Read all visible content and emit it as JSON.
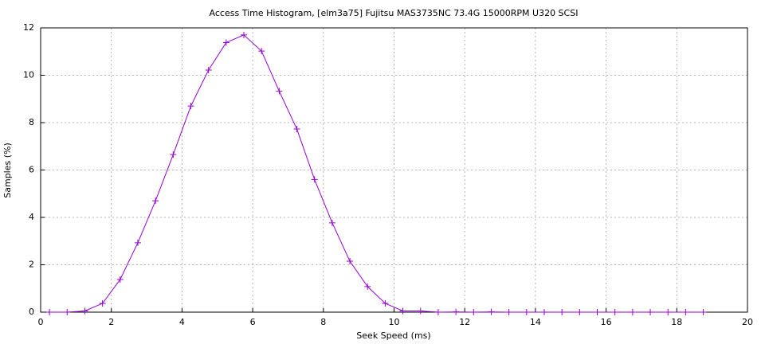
{
  "chart_data": {
    "type": "line",
    "title": "Access Time Histogram, [elm3a75] Fujitsu MAS3735NC 73.4G 15000RPM U320 SCSI",
    "x_label": "Seek Speed (ms)",
    "y_label": "Samples (%)",
    "x": [
      0.25,
      0.75,
      1.25,
      1.75,
      2.25,
      2.75,
      3.25,
      3.75,
      4.25,
      4.75,
      5.25,
      5.75,
      6.25,
      6.75,
      7.25,
      7.75,
      8.25,
      8.75,
      9.25,
      9.75,
      10.25,
      10.75,
      11.25,
      11.75,
      12.25,
      12.75,
      13.25,
      13.75,
      14.25,
      14.75,
      15.25,
      15.75,
      16.25,
      16.75,
      17.25,
      17.75,
      18.25,
      18.75
    ],
    "values": [
      0,
      0,
      0.05,
      0.37,
      1.38,
      2.93,
      4.7,
      6.65,
      8.7,
      10.22,
      11.38,
      11.7,
      11.02,
      9.33,
      7.73,
      5.6,
      3.77,
      2.15,
      1.08,
      0.37,
      0.05,
      0.05,
      0,
      0.01,
      0,
      0.01,
      0,
      0,
      0,
      0,
      0,
      0,
      0,
      0,
      0,
      0,
      0,
      0
    ],
    "color": "#9400d3",
    "xlim": [
      0,
      20
    ],
    "xticks": [
      0,
      2,
      4,
      6,
      8,
      10,
      12,
      14,
      16,
      18,
      20
    ],
    "ylim": [
      0,
      12
    ],
    "yticks": [
      0,
      2,
      4,
      6,
      8,
      10,
      12
    ],
    "grid": true
  }
}
